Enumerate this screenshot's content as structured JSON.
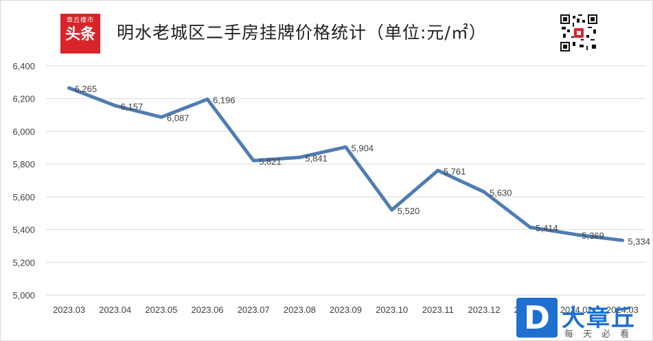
{
  "header": {
    "logo_line1": "章丘楼市",
    "logo_line2": "头条",
    "title": "明水老城区二手房挂牌价格统计（单位:元/㎡）"
  },
  "watermark": {
    "mark": "D",
    "name": "大章丘",
    "slogan": "每天必看"
  },
  "colors": {
    "line": "#4f7cb3",
    "grid": "#d9d9d9",
    "logo_bg": "#d9252a",
    "watermark": "#1f6fd1"
  },
  "chart_data": {
    "type": "line",
    "title": "明水老城区二手房挂牌价格统计（单位:元/㎡）",
    "xlabel": "",
    "ylabel": "",
    "ylim": [
      5000,
      6400
    ],
    "yticks": [
      "5,000",
      "5,200",
      "5,400",
      "5,600",
      "5,800",
      "6,000",
      "6,200",
      "6,400"
    ],
    "grid": true,
    "categories": [
      "2023.03",
      "2023.04",
      "2023.05",
      "2023.06",
      "2023.07",
      "2023.08",
      "2023.09",
      "2023.10",
      "2023.11",
      "2023.12",
      "2024.01",
      "2024.02",
      "2024.03"
    ],
    "series": [
      {
        "name": "",
        "values": [
          6265,
          6157,
          6087,
          6196,
          5821,
          5841,
          5904,
          5520,
          5761,
          5630,
          5414,
          5369,
          5334
        ],
        "labels": [
          "6,265",
          "6,157",
          "6,087",
          "6,196",
          "5,821",
          "5,841",
          "5,904",
          "5,520",
          "5,761",
          "5,630",
          "5,414",
          "5,369",
          "5,334"
        ]
      }
    ]
  }
}
